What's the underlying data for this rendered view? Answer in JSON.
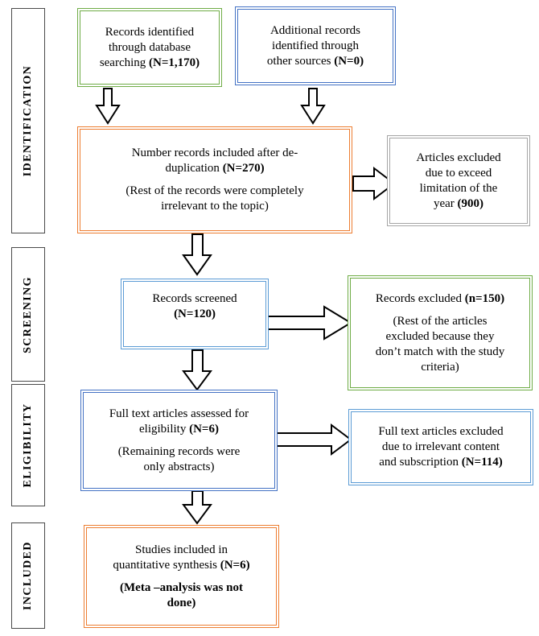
{
  "phases": {
    "identification": "IDENTIFICATION",
    "screening": "SCREENING",
    "eligibility": "ELIGIBILITY",
    "included": "INCLUDED"
  },
  "boxes": {
    "database": {
      "line1": "Records identified",
      "line2": "through database",
      "line3_pre": "searching ",
      "line3_bold": "(N=1,170)"
    },
    "other": {
      "line1": "Additional records",
      "line2": "identified through",
      "line3_pre": "other sources ",
      "line3_bold": "(N=0)"
    },
    "dedup": {
      "line1": "Number records included after de-",
      "line2_pre": "duplication ",
      "line2_bold": "(N=270)",
      "note1": "(Rest of the records were completely",
      "note2": "irrelevant to the topic)"
    },
    "year_excluded": {
      "line1": "Articles excluded",
      "line2": "due to exceed",
      "line3": "limitation of the",
      "line4_pre": "year ",
      "line4_bold": "(900)"
    },
    "screened": {
      "line1": "Records screened",
      "line2_bold": "(N=120)"
    },
    "screen_excluded": {
      "line1_pre": "Records excluded ",
      "line1_bold": "(n=150)",
      "note1": "(Rest of the articles",
      "note2": "excluded because they",
      "note3": "don’t match with the study",
      "note4": "criteria)"
    },
    "fulltext": {
      "line1": "Full text articles assessed for",
      "line2_pre": "eligibility ",
      "line2_bold": "(N=6)",
      "note1": "(Remaining records were",
      "note2": "only abstracts)"
    },
    "fulltext_excluded": {
      "line1": "Full text articles excluded",
      "line2": "due to irrelevant content",
      "line3_pre": "and subscription ",
      "line3_bold": "(N=114)"
    },
    "included": {
      "line1": "Studies included   in",
      "line2_pre": "quantitative synthesis ",
      "line2_bold": "(N=6)",
      "note1_bold": "(Meta –analysis was not",
      "note2_bold": "done)"
    }
  },
  "colors": {
    "green": "#6fac46",
    "blue": "#4472c4",
    "orange": "#ed7d31",
    "gray": "#a5a5a5",
    "light_blue": "#5b9bd5"
  }
}
